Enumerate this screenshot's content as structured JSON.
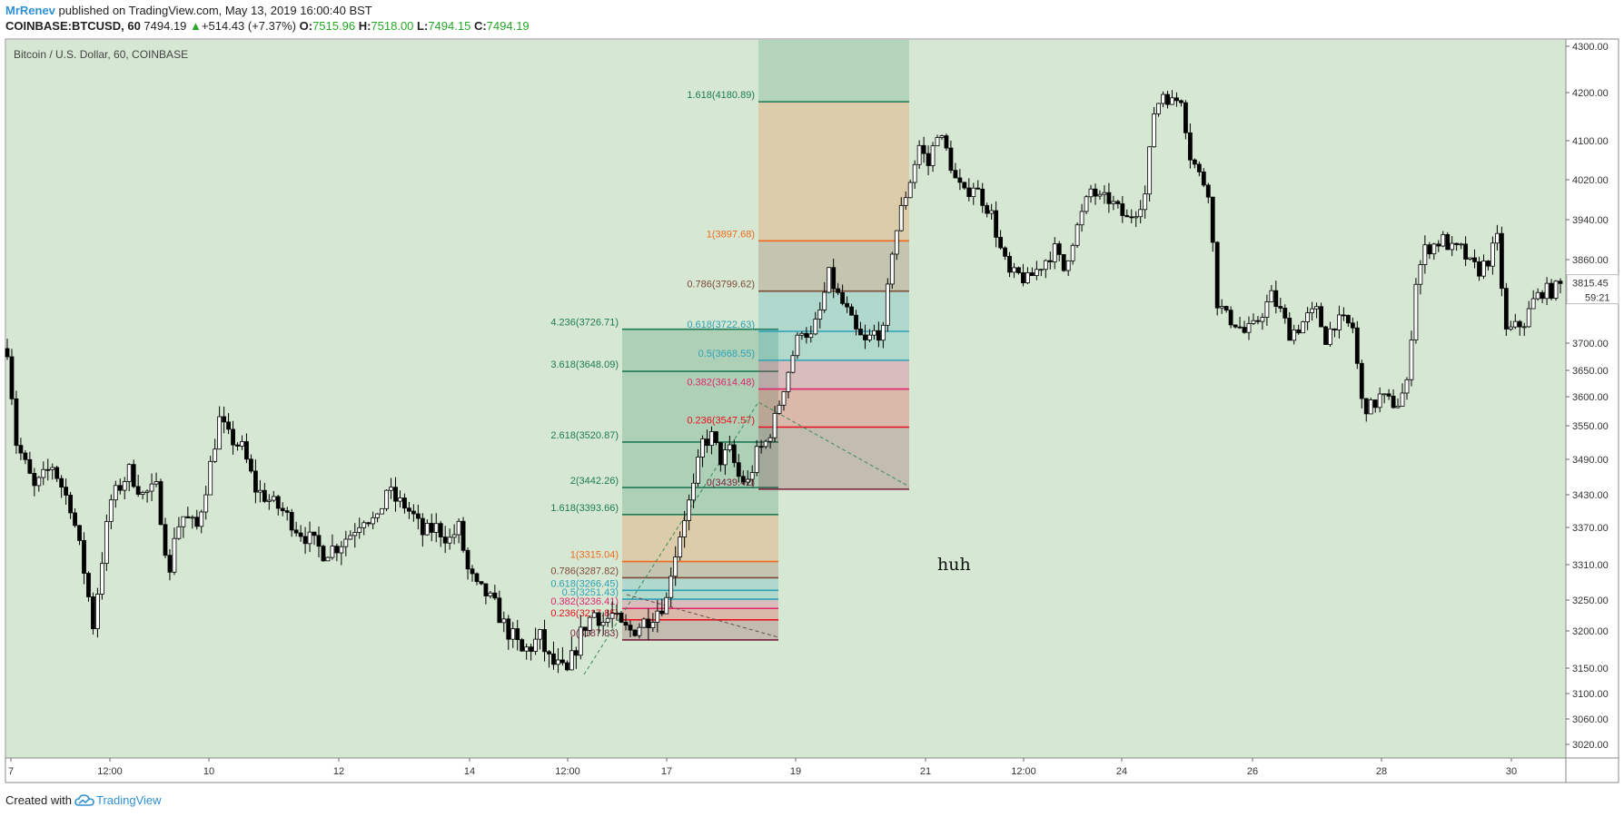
{
  "header": {
    "author": "MrRenev",
    "published_text": "published on TradingView.com, May 13, 2019 16:00:40 BST",
    "symbol": "COINBASE:BTCUSD, 60",
    "last": "7494.19",
    "change_arrow": "▲",
    "change": "+514.43 (+7.37%)",
    "o_label": "O:",
    "o_value": "7515.96",
    "h_label": "H:",
    "h_value": "7518.00",
    "l_label": "L:",
    "l_value": "7494.15",
    "c_label": "C:",
    "c_value": "7494.19"
  },
  "footer": {
    "created_with": "Created with",
    "brand": "TradingView",
    "logo_icon": "tradingview-cloud-icon"
  },
  "colors": {
    "pane_bg": "#d6e8d3",
    "candle": "#000000",
    "up_text": "#26a826",
    "brand": "#2e91d4",
    "fib_0": "#7a1f3d",
    "fib_0236": "#e8101c",
    "fib_0382": "#e0246e",
    "fib_05": "#2fa3b8",
    "fib_0618": "#2aa1b5",
    "fib_0786": "#7e4a37",
    "fib_1": "#f06a1d",
    "fib_ext": "#1e7a55"
  },
  "chart_data": {
    "type": "candlestick",
    "title": "Bitcoin / U.S. Dollar, 60, COINBASE",
    "x_ticks": [
      "7",
      "12:00",
      "10",
      "12",
      "14",
      "12:00",
      "17",
      "19",
      "21",
      "12:00",
      "24",
      "26",
      "28",
      "30"
    ],
    "y_ticks": [
      "4300.00",
      "4200.00",
      "4100.00",
      "4020.00",
      "3940.00",
      "3860.00",
      "3700.00",
      "3650.00",
      "3600.00",
      "3550.00",
      "3490.00",
      "3430.00",
      "3370.00",
      "3310.00",
      "3250.00",
      "3200.00",
      "3150.00",
      "3100.00",
      "3060.00",
      "3020.00"
    ],
    "price_labels": {
      "last": "3815.45",
      "countdown": "59:21"
    },
    "grid": false,
    "price_path": [
      [
        0,
        3690
      ],
      [
        2,
        3520
      ],
      [
        6,
        3440
      ],
      [
        10,
        3480
      ],
      [
        14,
        3410
      ],
      [
        17,
        3300
      ],
      [
        19,
        3210
      ],
      [
        21,
        3320
      ],
      [
        23,
        3420
      ],
      [
        27,
        3470
      ],
      [
        30,
        3430
      ],
      [
        33,
        3440
      ],
      [
        36,
        3290
      ],
      [
        37,
        3360
      ],
      [
        39,
        3390
      ],
      [
        42,
        3370
      ],
      [
        45,
        3480
      ],
      [
        47,
        3560
      ],
      [
        49,
        3530
      ],
      [
        52,
        3510
      ],
      [
        55,
        3440
      ],
      [
        58,
        3420
      ],
      [
        61,
        3400
      ],
      [
        64,
        3370
      ],
      [
        67,
        3350
      ],
      [
        70,
        3330
      ],
      [
        73,
        3340
      ],
      [
        76,
        3360
      ],
      [
        79,
        3390
      ],
      [
        82,
        3380
      ],
      [
        84,
        3440
      ],
      [
        86,
        3420
      ],
      [
        88,
        3410
      ],
      [
        90,
        3390
      ],
      [
        92,
        3360
      ],
      [
        95,
        3370
      ],
      [
        98,
        3350
      ],
      [
        100,
        3370
      ],
      [
        102,
        3300
      ],
      [
        104,
        3270
      ],
      [
        106,
        3260
      ],
      [
        108,
        3240
      ],
      [
        110,
        3210
      ],
      [
        112,
        3190
      ],
      [
        114,
        3170
      ],
      [
        116,
        3180
      ],
      [
        118,
        3190
      ],
      [
        120,
        3160
      ],
      [
        122,
        3150
      ],
      [
        124,
        3140
      ],
      [
        126,
        3180
      ],
      [
        128,
        3210
      ],
      [
        130,
        3230
      ],
      [
        132,
        3215
      ],
      [
        134,
        3225
      ],
      [
        136,
        3205
      ],
      [
        138,
        3200
      ],
      [
        140,
        3210
      ],
      [
        142,
        3220
      ],
      [
        144,
        3235
      ],
      [
        146,
        3250
      ],
      [
        147,
        3300
      ],
      [
        148,
        3330
      ],
      [
        150,
        3390
      ],
      [
        152,
        3440
      ],
      [
        154,
        3520
      ],
      [
        156,
        3530
      ],
      [
        158,
        3490
      ],
      [
        160,
        3505
      ],
      [
        162,
        3460
      ],
      [
        164,
        3450
      ],
      [
        166,
        3500
      ],
      [
        168,
        3520
      ],
      [
        170,
        3560
      ],
      [
        172,
        3620
      ],
      [
        174,
        3680
      ],
      [
        176,
        3730
      ],
      [
        178,
        3710
      ],
      [
        180,
        3760
      ],
      [
        182,
        3830
      ],
      [
        184,
        3790
      ],
      [
        186,
        3760
      ],
      [
        188,
        3720
      ],
      [
        190,
        3700
      ],
      [
        192,
        3720
      ],
      [
        194,
        3720
      ],
      [
        196,
        3880
      ],
      [
        198,
        3960
      ],
      [
        200,
        4020
      ],
      [
        202,
        4090
      ],
      [
        204,
        4050
      ],
      [
        206,
        4120
      ],
      [
        208,
        4080
      ],
      [
        210,
        4020
      ],
      [
        212,
        3990
      ],
      [
        214,
        4010
      ],
      [
        216,
        3980
      ],
      [
        218,
        3950
      ],
      [
        220,
        3880
      ],
      [
        222,
        3830
      ],
      [
        224,
        3830
      ],
      [
        226,
        3820
      ],
      [
        228,
        3840
      ],
      [
        230,
        3860
      ],
      [
        232,
        3880
      ],
      [
        234,
        3840
      ],
      [
        236,
        3900
      ],
      [
        238,
        3950
      ],
      [
        240,
        4000
      ],
      [
        242,
        3980
      ],
      [
        244,
        3980
      ],
      [
        246,
        3960
      ],
      [
        248,
        3940
      ],
      [
        250,
        3960
      ],
      [
        252,
        3990
      ],
      [
        254,
        4160
      ],
      [
        256,
        4200
      ],
      [
        258,
        4180
      ],
      [
        260,
        4190
      ],
      [
        262,
        4070
      ],
      [
        264,
        4030
      ],
      [
        266,
        4000
      ],
      [
        268,
        3780
      ],
      [
        270,
        3750
      ],
      [
        272,
        3740
      ],
      [
        274,
        3720
      ],
      [
        276,
        3730
      ],
      [
        278,
        3760
      ],
      [
        280,
        3790
      ],
      [
        282,
        3760
      ],
      [
        284,
        3720
      ],
      [
        286,
        3730
      ],
      [
        288,
        3750
      ],
      [
        290,
        3760
      ],
      [
        292,
        3710
      ],
      [
        294,
        3740
      ],
      [
        296,
        3740
      ],
      [
        298,
        3730
      ],
      [
        300,
        3590
      ],
      [
        302,
        3580
      ],
      [
        304,
        3600
      ],
      [
        306,
        3590
      ],
      [
        308,
        3590
      ],
      [
        310,
        3620
      ],
      [
        312,
        3820
      ],
      [
        314,
        3880
      ],
      [
        316,
        3890
      ],
      [
        318,
        3900
      ],
      [
        320,
        3880
      ],
      [
        322,
        3880
      ],
      [
        324,
        3850
      ],
      [
        326,
        3840
      ],
      [
        328,
        3860
      ],
      [
        330,
        3900
      ],
      [
        332,
        3720
      ],
      [
        334,
        3730
      ],
      [
        336,
        3740
      ],
      [
        338,
        3780
      ],
      [
        340,
        3800
      ],
      [
        342,
        3800
      ],
      [
        344,
        3810
      ]
    ],
    "fib_retracement_left": {
      "levels": [
        {
          "label": "4.236(3726.71)",
          "value": 3726.71
        },
        {
          "label": "3.618(3648.09)",
          "value": 3648.09
        },
        {
          "label": "2.618(3520.87)",
          "value": 3520.87
        },
        {
          "label": "2(3442.26)",
          "value": 3442.26
        },
        {
          "label": "1.618(3393.66)",
          "value": 3393.66
        },
        {
          "label": "1(3315.04)",
          "value": 3315.04
        },
        {
          "label": "0.786(3287.82)",
          "value": 3287.82
        },
        {
          "label": "0.618(3266.45)",
          "value": 3266.45
        },
        {
          "label": "0.5(3251.43)",
          "value": 3251.43
        },
        {
          "label": "0.382(3236.41)",
          "value": 3236.41
        },
        {
          "label": "0.236(3217.85)",
          "value": 3217.85
        },
        {
          "label": "0(3187.83)",
          "value": 3187.83
        }
      ]
    },
    "fib_retracement_right": {
      "levels": [
        {
          "label": "1.618(4180.89)",
          "value": 4180.89
        },
        {
          "label": "1(3897.68)",
          "value": 3897.68
        },
        {
          "label": "0.786(3799.62)",
          "value": 3799.62
        },
        {
          "label": "0.618(3722.63)",
          "value": 3722.63
        },
        {
          "label": "0.5(3668.55)",
          "value": 3668.55
        },
        {
          "label": "0.382(3614.48)",
          "value": 3614.48
        },
        {
          "label": "0.236(3547.57)",
          "value": 3547.57
        },
        {
          "label": "0(3439.42)",
          "value": 3439.42
        }
      ]
    },
    "annotation": "huh"
  }
}
